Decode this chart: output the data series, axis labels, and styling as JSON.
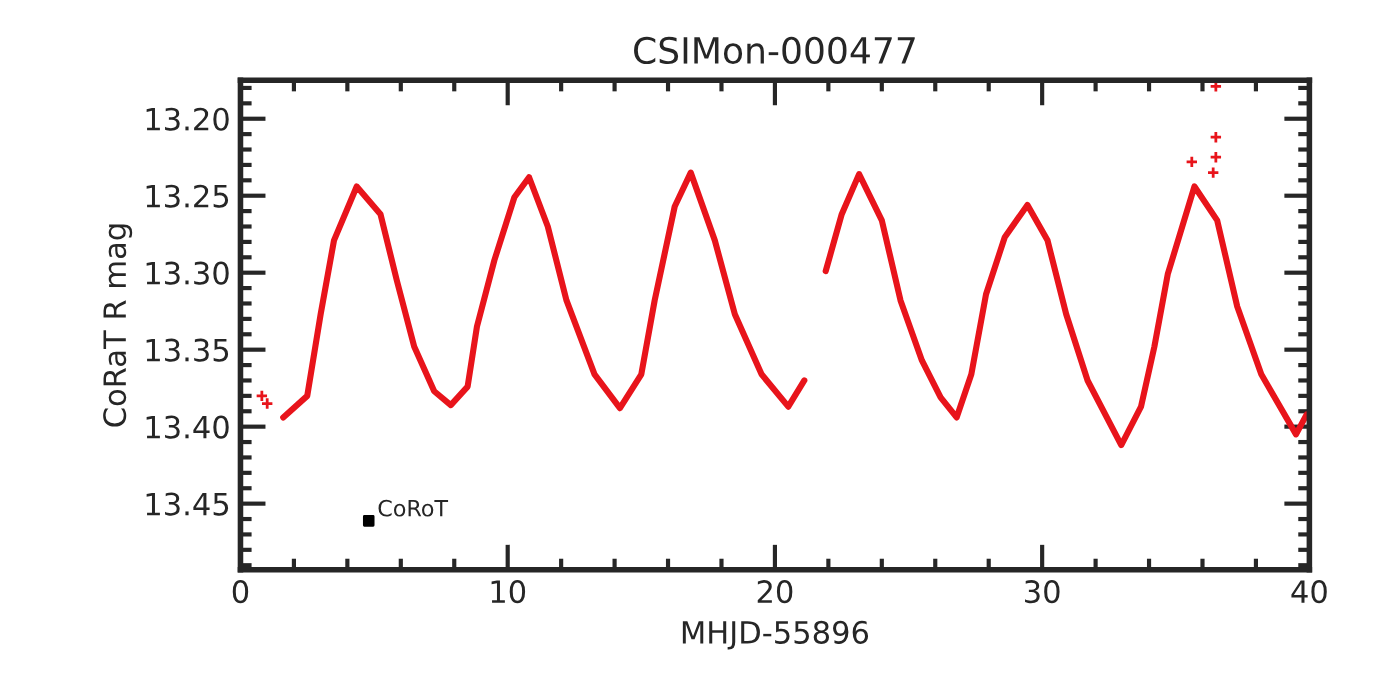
{
  "chart_data": {
    "type": "line",
    "title": "CSIMon-000477",
    "xlabel": "MHJD-55896",
    "ylabel": "CoRaT R mag",
    "series": [
      {
        "color": "#e8141b",
        "line_style": "solid",
        "marker": "none",
        "x": [
          1.6,
          2.5,
          3.0,
          3.5,
          4.35,
          5.24,
          5.85,
          6.5,
          7.25,
          7.87,
          8.5,
          8.85,
          9.5,
          10.25,
          10.8,
          11.5,
          12.2,
          13.25,
          14.2,
          15.0,
          15.5,
          16.25,
          16.85,
          17.75,
          18.5,
          19.5,
          20.5,
          21.1,
          21.5,
          21.9,
          22.5,
          23.15,
          24.0,
          24.7,
          25.5,
          26.2,
          26.8,
          27.35,
          27.9,
          28.6,
          29.45,
          30.2,
          30.9,
          31.7,
          32.96,
          33.7,
          34.2,
          34.7,
          35.7,
          36.55,
          37.3,
          38.2,
          39.5,
          39.9
        ],
        "values": [
          13.394,
          13.38,
          13.327,
          13.279,
          13.244,
          13.262,
          13.305,
          13.348,
          13.377,
          13.386,
          13.374,
          13.335,
          13.292,
          13.251,
          13.238,
          13.27,
          13.318,
          13.366,
          13.388,
          13.366,
          13.318,
          13.257,
          13.235,
          13.279,
          13.327,
          13.366,
          13.387,
          13.37,
          null,
          13.299,
          13.262,
          13.236,
          13.266,
          13.318,
          13.357,
          13.381,
          13.394,
          13.366,
          13.314,
          13.277,
          13.256,
          13.279,
          13.327,
          13.37,
          13.412,
          13.387,
          13.348,
          13.301,
          13.244,
          13.266,
          13.322,
          13.366,
          13.405,
          13.392
        ]
      },
      {
        "type": "scatter",
        "color": "#e8141b",
        "marker": "cross",
        "x": [
          0.8,
          1.0,
          36.5,
          36.5,
          36.5,
          36.4,
          35.6
        ],
        "values": [
          13.38,
          13.385,
          13.179,
          13.212,
          13.225,
          13.235,
          13.228
        ]
      }
    ],
    "xlim": [
      0,
      40
    ],
    "xticks": [
      0,
      10,
      20,
      30,
      40
    ],
    "ylim": [
      13.493,
      13.175
    ],
    "yticks": [
      {
        "value": 13.2,
        "label": "13.20"
      },
      {
        "value": 13.25,
        "label": "13.25"
      },
      {
        "value": 13.3,
        "label": "13.30"
      },
      {
        "value": 13.35,
        "label": "13.35"
      },
      {
        "value": 13.4,
        "label": "13.40"
      },
      {
        "value": 13.45,
        "label": "13.45"
      }
    ],
    "grid": false,
    "legend": false,
    "annotations": [
      "CoRoT"
    ]
  }
}
